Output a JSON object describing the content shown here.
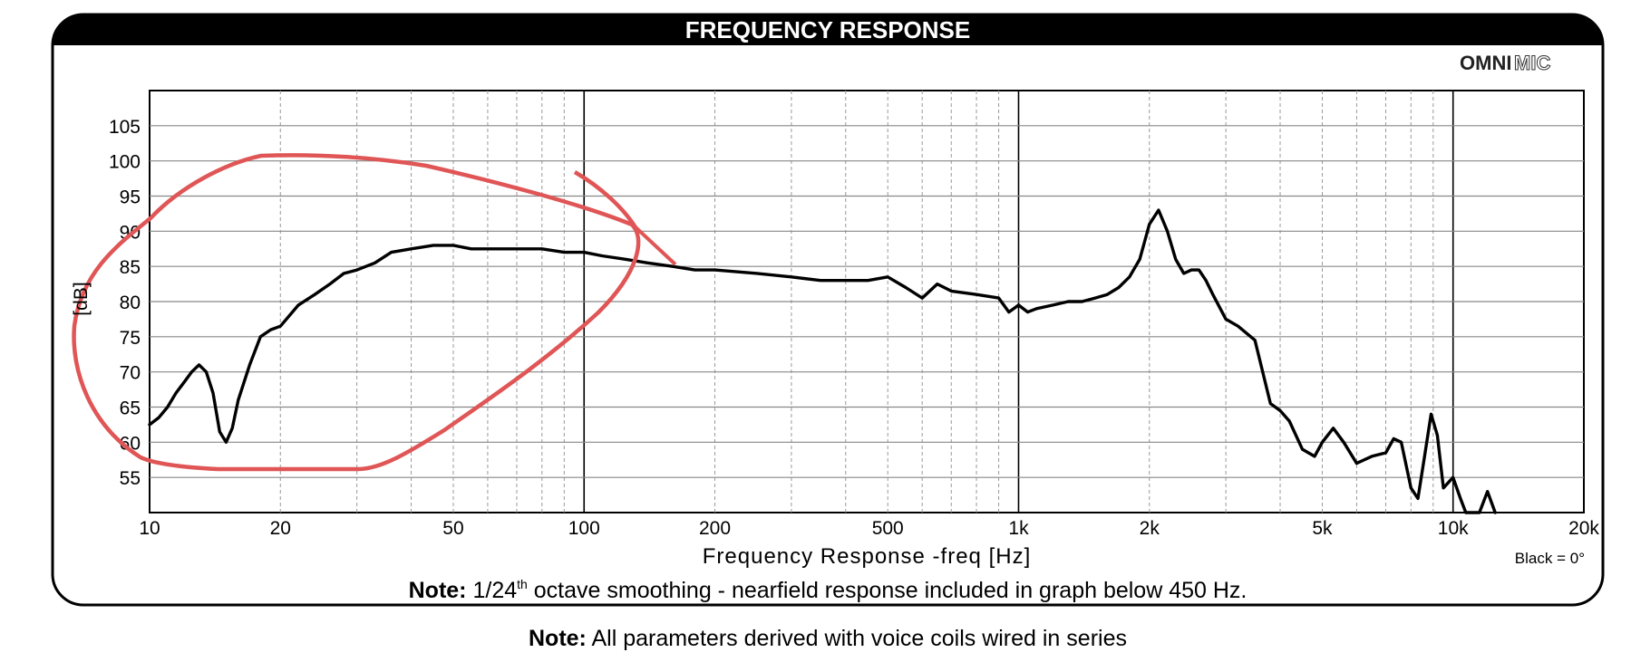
{
  "header": {
    "title": "FREQUENCY RESPONSE",
    "brand_bold": "OMNI",
    "brand_outline": "MIC"
  },
  "chart_data": {
    "type": "line",
    "xlabel": "Frequency Response -freq [Hz]",
    "ylabel": "[dB]",
    "x_scale": "log",
    "xlim": [
      10,
      20000
    ],
    "ylim": [
      50,
      110
    ],
    "grid": true,
    "x_ticks": [
      {
        "value": 10,
        "label": "10"
      },
      {
        "value": 20,
        "label": "20"
      },
      {
        "value": 50,
        "label": "50"
      },
      {
        "value": 100,
        "label": "100"
      },
      {
        "value": 200,
        "label": "200"
      },
      {
        "value": 500,
        "label": "500"
      },
      {
        "value": 1000,
        "label": "1k"
      },
      {
        "value": 2000,
        "label": "2k"
      },
      {
        "value": 5000,
        "label": "5k"
      },
      {
        "value": 10000,
        "label": "10k"
      },
      {
        "value": 20000,
        "label": "20k"
      }
    ],
    "y_ticks": [
      55,
      60,
      65,
      70,
      75,
      80,
      85,
      90,
      95,
      100,
      105
    ],
    "legend": "Black = 0°",
    "series": [
      {
        "color": "#000000",
        "x": [
          10,
          10.5,
          11,
          11.5,
          12,
          12.5,
          13,
          13.5,
          14,
          14.5,
          15,
          15.5,
          16,
          17,
          18,
          19,
          20,
          22,
          24,
          26,
          28,
          30,
          33,
          36,
          40,
          45,
          50,
          55,
          60,
          70,
          80,
          90,
          100,
          110,
          125,
          140,
          160,
          180,
          200,
          250,
          300,
          350,
          400,
          450,
          500,
          550,
          600,
          650,
          700,
          800,
          900,
          950,
          1000,
          1050,
          1100,
          1200,
          1300,
          1400,
          1500,
          1600,
          1700,
          1800,
          1900,
          2000,
          2100,
          2200,
          2300,
          2400,
          2500,
          2600,
          2700,
          2800,
          3000,
          3200,
          3500,
          3800,
          4000,
          4200,
          4500,
          4800,
          5000,
          5300,
          5600,
          6000,
          6500,
          7000,
          7300,
          7600,
          8000,
          8300,
          8600,
          8900,
          9200,
          9500,
          10000,
          10400,
          10700,
          11000,
          11500,
          12000,
          12500
        ],
        "y": [
          62.5,
          63.5,
          65,
          67,
          68.5,
          70,
          71,
          70,
          67,
          61.5,
          60,
          62,
          66,
          71,
          75,
          76,
          76.5,
          79.5,
          81,
          82.5,
          84,
          84.5,
          85.5,
          87,
          87.5,
          88,
          88,
          87.5,
          87.5,
          87.5,
          87.5,
          87,
          87,
          86.5,
          86,
          85.5,
          85,
          84.5,
          84.5,
          84,
          83.5,
          83,
          83,
          83,
          83.5,
          82,
          80.5,
          82.5,
          81.5,
          81,
          80.5,
          78.5,
          79.5,
          78.5,
          79,
          79.5,
          80,
          80,
          80.5,
          81,
          82,
          83.5,
          86,
          91,
          93,
          90,
          86,
          84,
          84.5,
          84.5,
          83,
          81,
          77.5,
          76.5,
          74.5,
          65.5,
          64.5,
          63,
          59,
          58,
          60,
          62,
          60,
          57,
          58,
          58.5,
          60.5,
          60,
          53.5,
          52,
          58,
          64,
          61,
          53.5,
          55,
          52,
          50,
          50,
          50,
          53,
          50
        ]
      }
    ],
    "annotations": [
      "Black = 0°"
    ]
  },
  "notes": {
    "inner_bold": "Note:",
    "inner_rest": "octave smoothing - nearfield response included in graph below 450 Hz.",
    "inner_fraction": "1/24",
    "inner_sup": "th",
    "outer_bold": "Note:",
    "outer_rest": "All parameters derived with voice coils wired in series"
  }
}
